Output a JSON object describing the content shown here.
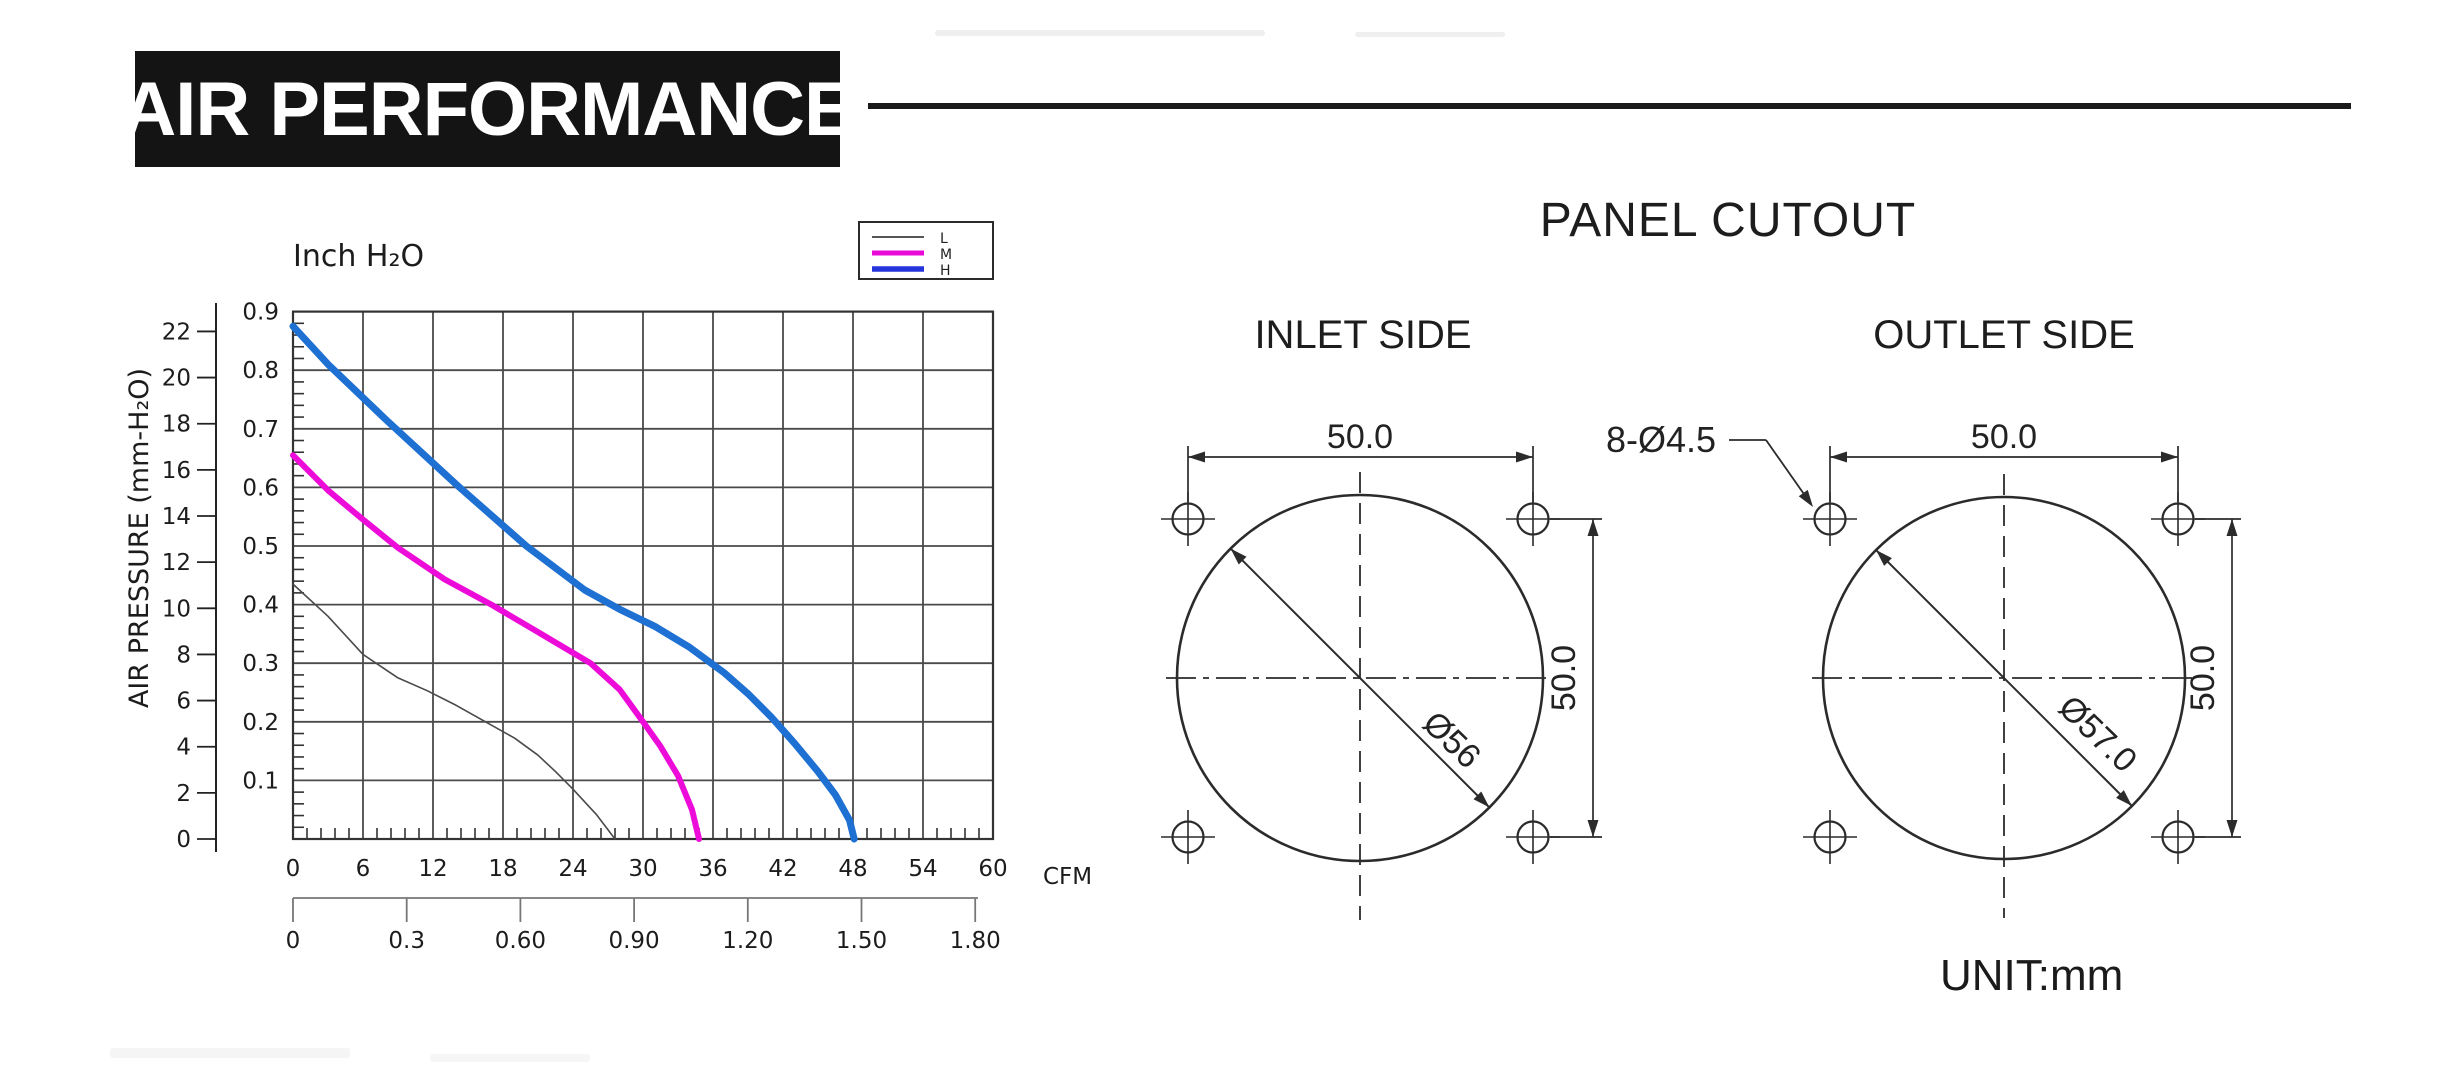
{
  "header": {
    "title": "AIR PERFORMANCE"
  },
  "chart": {
    "inch_axis_title": "Inch H₂O",
    "pressure_axis_title": "AIR PRESSURE   (mm-H₂O)",
    "flow_unit_label": "CFM",
    "legend": {
      "items": [
        {
          "label": "L",
          "color": "#555555"
        },
        {
          "label": "M",
          "color": "#E80BD8"
        },
        {
          "label": "H",
          "color": "#2433DC"
        }
      ]
    }
  },
  "chart_data": {
    "type": "line",
    "title": "AIR PERFORMANCE",
    "xlabel": "CFM",
    "ylabel_left": "AIR PRESSURE (mm-H₂O)",
    "ylabel_inner": "Inch H₂O",
    "xlim": [
      0,
      60
    ],
    "ylim_inch": [
      0,
      0.9
    ],
    "grid": true,
    "legend_position": "top-right",
    "x_ticks_cfm": [
      0,
      6,
      12,
      18,
      24,
      30,
      36,
      42,
      48,
      54,
      60
    ],
    "x_minor_step_cfm": 1.2,
    "y_ticks_inch": [
      0.9,
      0.8,
      0.7,
      0.6,
      0.5,
      0.4,
      0.3,
      0.2,
      0.1
    ],
    "y_minor_step_inch": 0.02,
    "y_ticks_mm": [
      0,
      2,
      4,
      6,
      8,
      10,
      12,
      14,
      16,
      18,
      20,
      22
    ],
    "x2_ticks": [
      "0",
      "0.3",
      "0.60",
      "0.90",
      "1.20",
      "1.50",
      "1.80"
    ],
    "series": [
      {
        "name": "L",
        "color": "#4a4a4a",
        "stroke_width": 1.6,
        "points": [
          [
            0,
            0.435
          ],
          [
            3,
            0.38
          ],
          [
            6,
            0.315
          ],
          [
            9,
            0.275
          ],
          [
            11.5,
            0.253
          ],
          [
            14,
            0.228
          ],
          [
            16.5,
            0.2
          ],
          [
            19,
            0.172
          ],
          [
            21,
            0.143
          ],
          [
            22.5,
            0.115
          ],
          [
            24,
            0.085
          ],
          [
            26,
            0.042
          ],
          [
            27.6,
            0
          ]
        ]
      },
      {
        "name": "M",
        "color": "#EC0BD9",
        "stroke_width": 6,
        "points": [
          [
            0,
            0.655
          ],
          [
            3,
            0.595
          ],
          [
            6,
            0.545
          ],
          [
            9,
            0.497
          ],
          [
            13,
            0.443
          ],
          [
            17,
            0.4
          ],
          [
            21,
            0.353
          ],
          [
            25.5,
            0.3
          ],
          [
            28,
            0.255
          ],
          [
            30,
            0.2
          ],
          [
            31.5,
            0.158
          ],
          [
            33,
            0.108
          ],
          [
            34.2,
            0.05
          ],
          [
            34.8,
            0
          ]
        ]
      },
      {
        "name": "H",
        "color": "#1E70D2",
        "stroke_width": 7,
        "points": [
          [
            0,
            0.875
          ],
          [
            3,
            0.81
          ],
          [
            8,
            0.715
          ],
          [
            14,
            0.605
          ],
          [
            20,
            0.5
          ],
          [
            25,
            0.425
          ],
          [
            28,
            0.392
          ],
          [
            31,
            0.363
          ],
          [
            34,
            0.327
          ],
          [
            37,
            0.283
          ],
          [
            39,
            0.248
          ],
          [
            41,
            0.208
          ],
          [
            43,
            0.163
          ],
          [
            45,
            0.115
          ],
          [
            46.5,
            0.075
          ],
          [
            47.7,
            0.032
          ],
          [
            48.1,
            0
          ]
        ]
      }
    ]
  },
  "panel_cutout": {
    "title": "PANEL CUTOUT",
    "holes_label": "8-Ø4.5",
    "unit": "UNIT:mm",
    "inlet": {
      "title": "INLET SIDE",
      "width": "50.0",
      "height": "50.0",
      "diameter": "Ø56"
    },
    "outlet": {
      "title": "OUTLET SIDE",
      "width": "50.0",
      "height": "50.0",
      "diameter": "Ø57.0"
    }
  }
}
